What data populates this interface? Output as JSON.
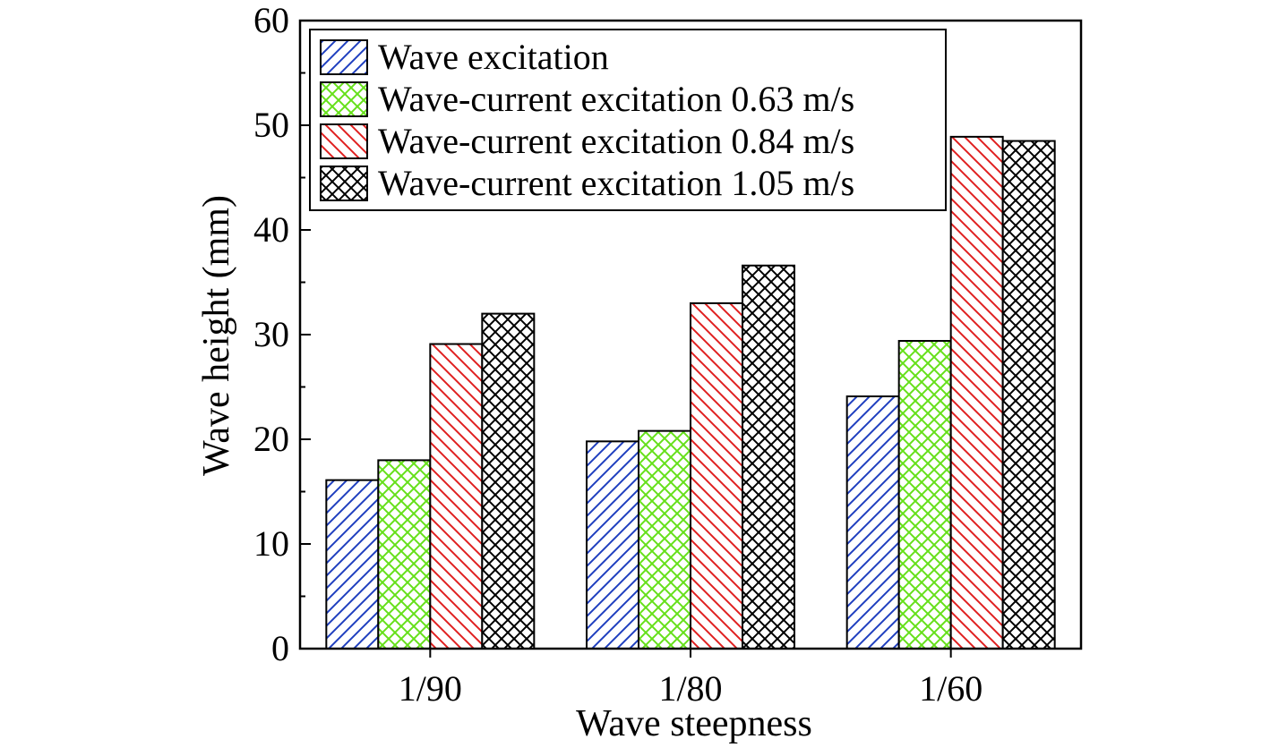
{
  "chart_data": {
    "type": "bar",
    "categories": [
      "1/90",
      "1/80",
      "1/60"
    ],
    "series": [
      {
        "name": "Wave excitation",
        "values": [
          16.1,
          19.8,
          24.1
        ],
        "color": "#1f3fbf",
        "pattern": "diagonal-up"
      },
      {
        "name": "Wave-current excitation 0.63 m/s",
        "values": [
          18.0,
          20.8,
          29.4
        ],
        "color": "#66e01a",
        "pattern": "crosshatch-diagonal"
      },
      {
        "name": "Wave-current excitation 0.84 m/s",
        "values": [
          29.1,
          33.0,
          48.9
        ],
        "color": "#e02020",
        "pattern": "diagonal-down"
      },
      {
        "name": "Wave-current excitation 1.05 m/s",
        "values": [
          32.0,
          36.6,
          48.5
        ],
        "color": "#000000",
        "pattern": "crosshatch-diagonal"
      }
    ],
    "xlabel": "Wave steepness",
    "ylabel": "Wave height (mm)",
    "ylim": [
      0,
      60
    ],
    "yticks": [
      0,
      10,
      20,
      30,
      40,
      50,
      60
    ],
    "grid": false,
    "legend": "top-left"
  }
}
